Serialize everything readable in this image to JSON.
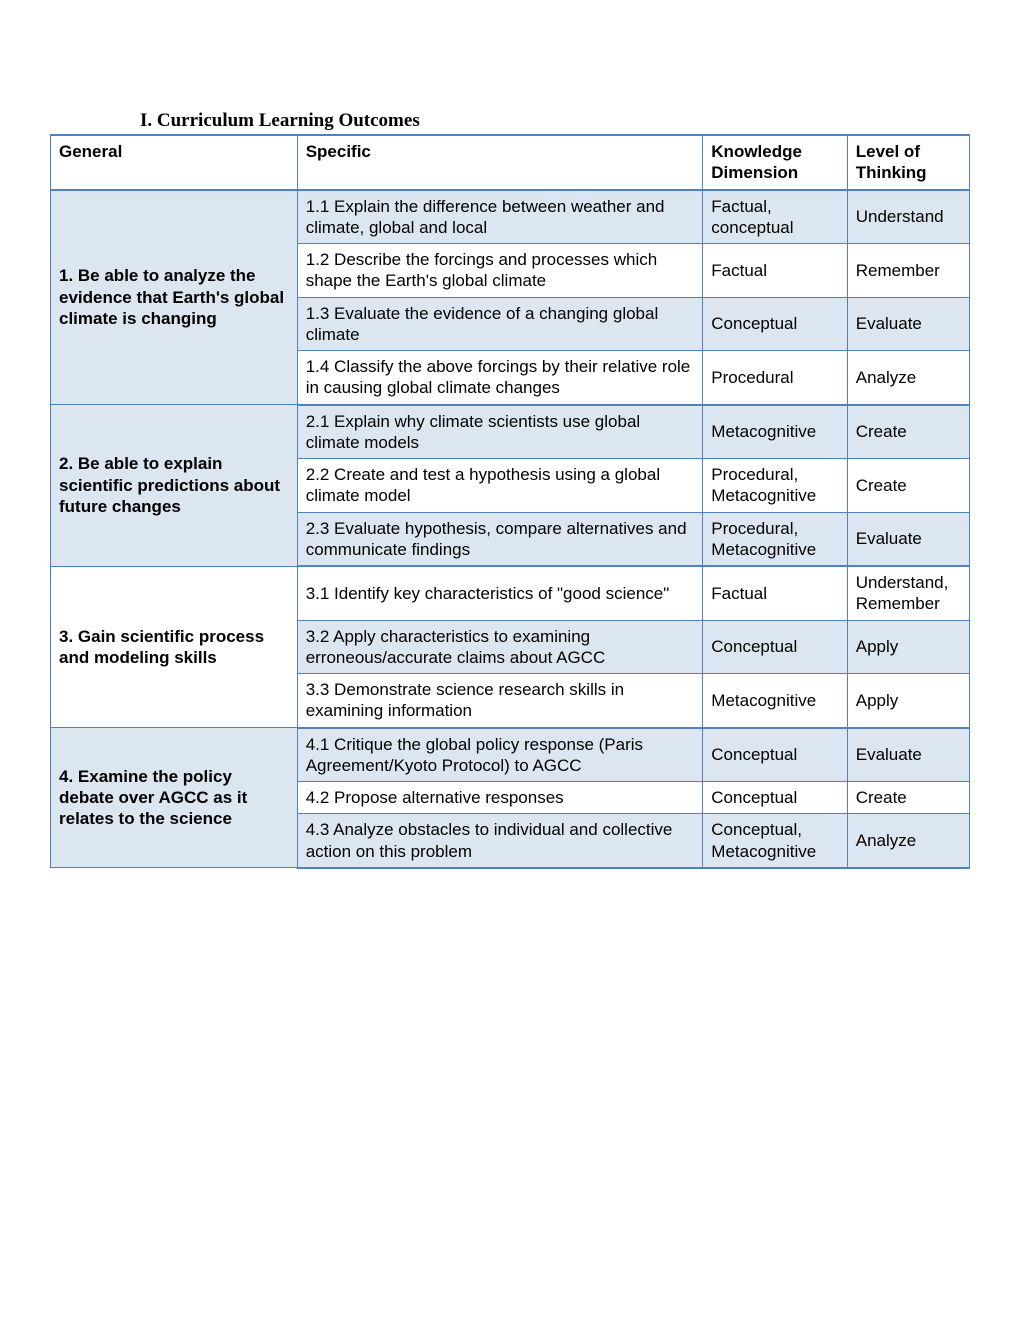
{
  "title": "I. Curriculum Learning Outcomes",
  "headers": {
    "general": "General",
    "specific": "Specific",
    "kd": "Knowledge Dimension",
    "lt": "Level of Thinking"
  },
  "groups": [
    {
      "general": "1. Be able to analyze the evidence that Earth's global climate is changing",
      "general_bg": "white",
      "rows": [
        {
          "alt": true,
          "specific": "1.1 Explain the difference between weather and climate, global and local",
          "kd": "Factual, conceptual",
          "lt": "Understand"
        },
        {
          "alt": false,
          "specific": "1.2 Describe the forcings and processes which shape the Earth's global climate",
          "kd": "Factual",
          "lt": "Remember"
        },
        {
          "alt": true,
          "specific": "1.3 Evaluate the evidence of a changing global climate",
          "kd": "Conceptual",
          "lt": "Evaluate"
        },
        {
          "alt": false,
          "specific": "1.4 Classify the above forcings by their relative role in causing global climate changes",
          "kd": "Procedural",
          "lt": "Analyze"
        }
      ]
    },
    {
      "general": "2. Be able to explain scientific predictions about future changes",
      "general_bg": "blue",
      "rows": [
        {
          "alt": true,
          "specific": "2.1 Explain why climate scientists use global climate models",
          "kd": "Metacognitive",
          "lt": "Create"
        },
        {
          "alt": false,
          "specific": "2.2 Create and test a hypothesis using a global climate model",
          "kd": "Procedural, Metacognitive",
          "lt": "Create"
        },
        {
          "alt": true,
          "specific": "2.3 Evaluate hypothesis, compare alternatives and communicate findings",
          "kd": "Procedural, Metacognitive",
          "lt": "Evaluate"
        }
      ]
    },
    {
      "general": "3. Gain scientific process and modeling skills",
      "general_bg": "white",
      "rows": [
        {
          "alt": false,
          "specific": "3.1 Identify key characteristics of \"good science\"",
          "kd": "Factual",
          "lt": "Understand, Remember"
        },
        {
          "alt": true,
          "specific": "3.2 Apply characteristics to examining erroneous/accurate claims about AGCC",
          "kd": "Conceptual",
          "lt": "Apply"
        },
        {
          "alt": false,
          "specific": "3.3 Demonstrate science research skills in examining information",
          "kd": "Metacognitive",
          "lt": "Apply"
        }
      ]
    },
    {
      "general": "4. Examine the policy debate over AGCC as it relates to the science",
      "general_bg": "blue",
      "rows": [
        {
          "alt": true,
          "specific": "4.1 Critique the global policy response (Paris Agreement/Kyoto Protocol) to AGCC",
          "kd": "Conceptual",
          "lt": "Evaluate"
        },
        {
          "alt": false,
          "specific": "4.2 Propose alternative responses",
          "kd": "Conceptual",
          "lt": "Create"
        },
        {
          "alt": true,
          "specific": "4.3 Analyze obstacles to individual and collective action on this problem",
          "kd": "Conceptual, Metacognitive",
          "lt": "Analyze"
        }
      ]
    }
  ]
}
